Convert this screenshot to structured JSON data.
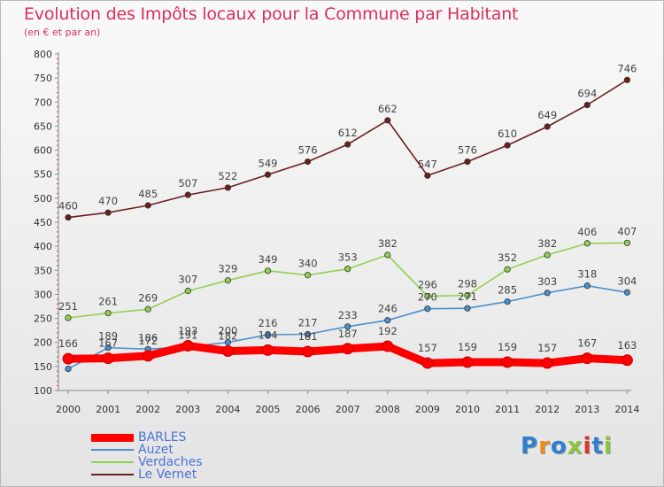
{
  "title": "Evolution des Impôts locaux pour la Commune par Habitant",
  "subtitle": "(en € et par an)",
  "logo": "Proxiti",
  "chart_data": {
    "type": "line",
    "title": "Evolution des Impôts locaux pour la Commune par Habitant",
    "subtitle": "(en € et par an)",
    "categories": [
      "2000",
      "2001",
      "2002",
      "2003",
      "2004",
      "2005",
      "2006",
      "2007",
      "2008",
      "2009",
      "2010",
      "2011",
      "2012",
      "2013",
      "2014"
    ],
    "ylim": [
      100,
      800
    ],
    "yticks": [
      100,
      150,
      200,
      250,
      300,
      350,
      400,
      450,
      500,
      550,
      600,
      650,
      700,
      750,
      800
    ],
    "grid": false,
    "legend_position": "bottom-left",
    "series": [
      {
        "name": "BARLES",
        "color": "#ff0000",
        "values": [
          166,
          167,
          172,
          193,
          182,
          184,
          181,
          187,
          192,
          157,
          159,
          159,
          157,
          167,
          163
        ]
      },
      {
        "name": "Auzet",
        "color": "#4d8fcf",
        "values": [
          145,
          189,
          186,
          191,
          200,
          216,
          217,
          233,
          246,
          270,
          271,
          285,
          303,
          318,
          304
        ]
      },
      {
        "name": "Verdaches",
        "color": "#92d050",
        "values": [
          251,
          261,
          269,
          307,
          329,
          349,
          340,
          353,
          382,
          296,
          298,
          352,
          382,
          406,
          407
        ]
      },
      {
        "name": "Le Vernet",
        "color": "#6b1f1f",
        "values": [
          460,
          470,
          485,
          507,
          522,
          549,
          576,
          612,
          662,
          547,
          576,
          610,
          649,
          694,
          746
        ]
      }
    ],
    "data_labels": [
      {
        "series": "Le Vernet",
        "labels": [
          "460",
          "470",
          "485",
          "507",
          "522",
          "549",
          "576",
          "612",
          "662",
          "547",
          "576",
          "610",
          "649",
          "694",
          "746"
        ]
      },
      {
        "series": "Verdaches",
        "labels": [
          "251",
          "261",
          "269",
          "307",
          "329",
          "349",
          "340",
          "353",
          "382",
          "296",
          "298",
          "352",
          "382",
          "406",
          "407"
        ]
      },
      {
        "series": "Auzet",
        "labels": [
          "",
          "189",
          "186",
          "191",
          "200",
          "216",
          "217",
          "233",
          "246",
          "270",
          "271",
          "285",
          "303",
          "318",
          "304"
        ]
      },
      {
        "series": "BARLES",
        "labels": [
          "166",
          "167",
          "172",
          "193",
          "182",
          "184",
          "181",
          "187",
          "192",
          "157",
          "159",
          "159",
          "157",
          "167",
          "163"
        ]
      }
    ]
  }
}
